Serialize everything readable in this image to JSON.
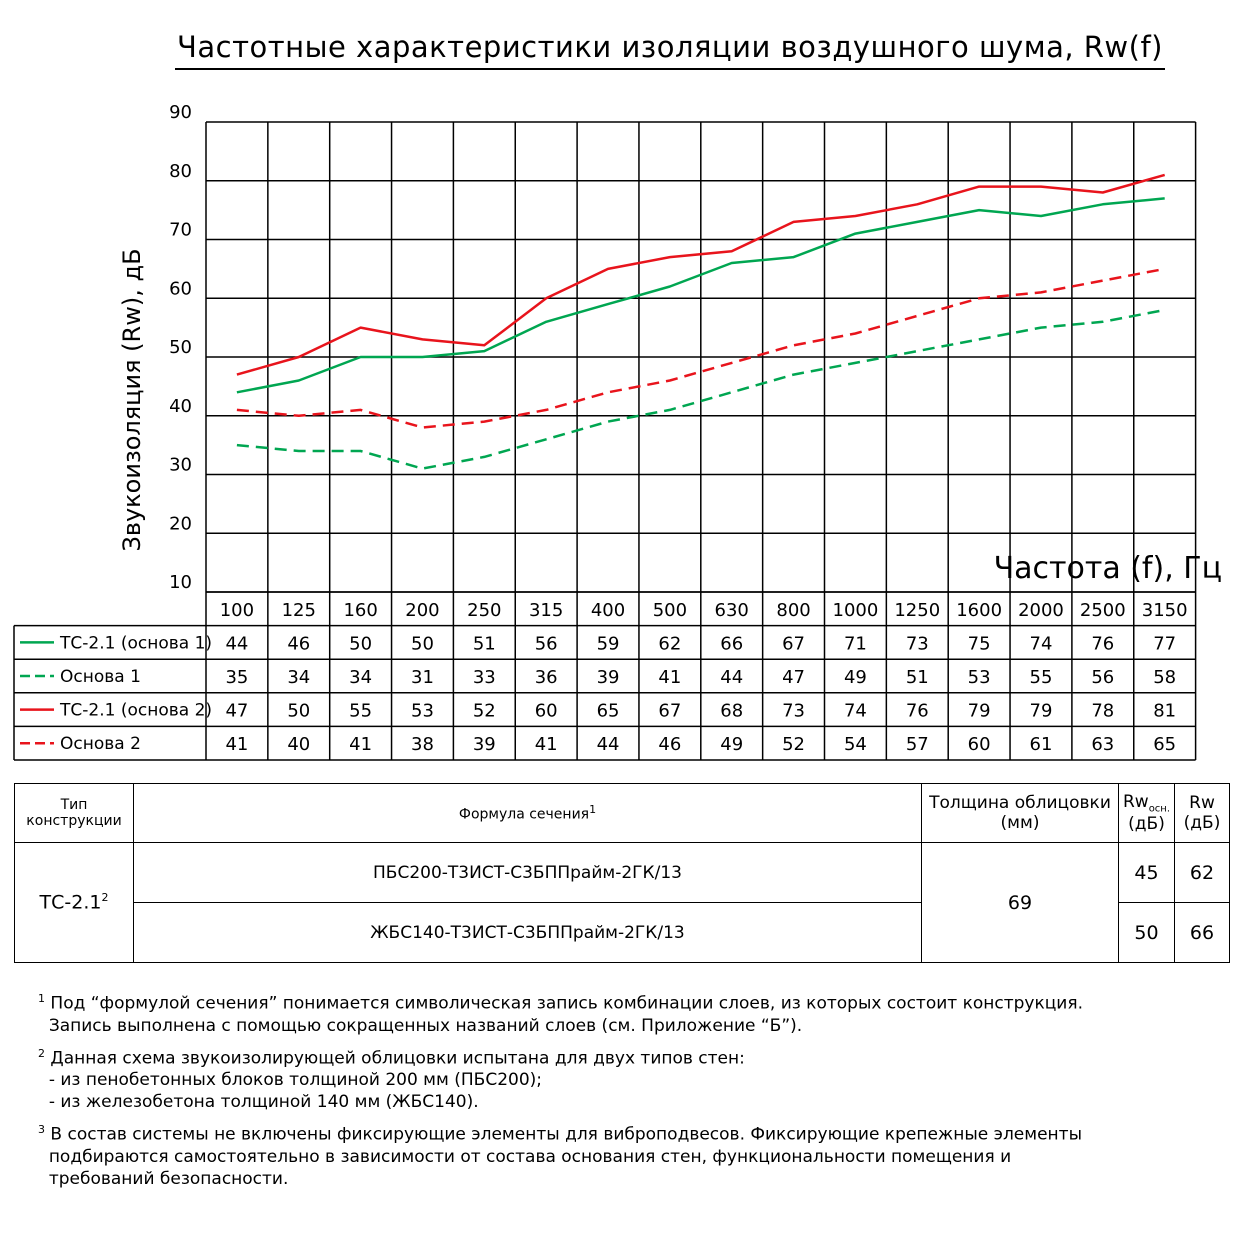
{
  "chart_data": {
    "type": "line",
    "title": "Частотные характеристики изоляции воздушного шума, Rw(f)",
    "xlabel": "Частота (f), Гц",
    "ylabel": "Звукоизоляция (Rw), дБ",
    "ylim": [
      10,
      90
    ],
    "yticks": [
      "10",
      "20",
      "30",
      "40",
      "50",
      "60",
      "70",
      "80",
      "90"
    ],
    "categories": [
      "100",
      "125",
      "160",
      "200",
      "250",
      "315",
      "400",
      "500",
      "630",
      "800",
      "1000",
      "1250",
      "1600",
      "2000",
      "2500",
      "3150"
    ],
    "grid": true,
    "series": [
      {
        "name": "ТС-2.1 (основа 1)",
        "color": "#00a651",
        "dash": false,
        "values": [
          44,
          46,
          50,
          50,
          51,
          56,
          59,
          62,
          66,
          67,
          71,
          73,
          75,
          74,
          76,
          77
        ]
      },
      {
        "name": "Основа 1",
        "color": "#00a651",
        "dash": true,
        "values": [
          35,
          34,
          34,
          31,
          33,
          36,
          39,
          41,
          44,
          47,
          49,
          51,
          53,
          55,
          56,
          58
        ]
      },
      {
        "name": "ТС-2.1 (основа 2)",
        "color": "#e8141c",
        "dash": false,
        "values": [
          47,
          50,
          55,
          53,
          52,
          60,
          65,
          67,
          68,
          73,
          74,
          76,
          79,
          79,
          78,
          81
        ]
      },
      {
        "name": "Основа 2",
        "color": "#e8141c",
        "dash": true,
        "values": [
          41,
          40,
          41,
          38,
          39,
          41,
          44,
          46,
          49,
          52,
          54,
          57,
          60,
          61,
          63,
          65
        ]
      }
    ]
  },
  "table": {
    "headers": {
      "type": "Тип конструкции",
      "formula": "Формула сечения",
      "formula_note": "1",
      "thickness": "Толщина облицовки (мм)",
      "rw_base_main": "Rw",
      "rw_base_sub": "осн.",
      "rw_base_unit": "(дБ)",
      "rw": "Rw",
      "rw_unit": "(дБ)"
    },
    "type_name": "ТС-2.1",
    "type_note": "2",
    "thickness": "69",
    "rows": [
      {
        "formula": "ПБС200-Т3ИСТ-С3БППрайм-2ГК/13",
        "rw_base": "45",
        "rw": "62"
      },
      {
        "formula": "ЖБС140-Т3ИСТ-С3БППрайм-2ГК/13",
        "rw_base": "50",
        "rw": "66"
      }
    ]
  },
  "notes": [
    {
      "num": "1",
      "lines": [
        "Под “формулой сечения” понимается символическая запись комбинации слоев, из которых состоит конструкция.",
        "Запись выполнена с помощью сокращенных названий слоев (см. Приложение “Б”)."
      ]
    },
    {
      "num": "2",
      "lines": [
        "Данная схема звукоизолирующей облицовки испытана для двух типов стен:",
        "- из пенобетонных блоков толщиной 200 мм (ПБС200);",
        "- из железобетона толщиной 140 мм (ЖБС140)."
      ]
    },
    {
      "num": "3",
      "lines": [
        "В состав системы не включены фиксирующие элементы для виброподвесов. Фиксирующие крепежные элементы",
        "подбираются самостоятельно в зависимости от состава основания стен, функциональности помещения и",
        "требований безопасности."
      ]
    }
  ]
}
